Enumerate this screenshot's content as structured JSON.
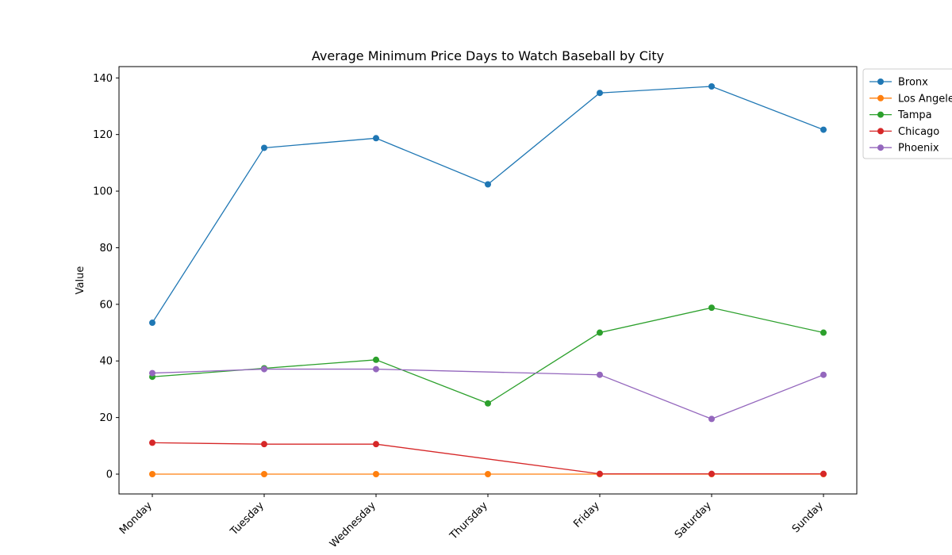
{
  "chart_data": {
    "type": "line",
    "title": "Average Minimum Price Days to Watch Baseball by City",
    "xlabel": "",
    "ylabel": "Value",
    "categories": [
      "Monday",
      "Tuesday",
      "Wednesday",
      "Thursday",
      "Friday",
      "Saturday",
      "Sunday"
    ],
    "ylim": [
      -7,
      144
    ],
    "yticks": [
      0,
      20,
      40,
      60,
      80,
      100,
      120,
      140
    ],
    "grid": false,
    "legend_position": "outside-top-right",
    "series": [
      {
        "name": "Bronx",
        "color": "#1f77b4",
        "values": [
          53.5,
          115.3,
          118.7,
          102.4,
          134.7,
          137.0,
          121.7
        ]
      },
      {
        "name": "Los Angeles",
        "color": "#ff7f0e",
        "values": [
          0,
          0,
          0,
          0,
          0,
          0,
          0
        ]
      },
      {
        "name": "Tampa",
        "color": "#2ca02c",
        "values": [
          34.4,
          37.4,
          40.4,
          25.0,
          50.0,
          58.8,
          50.0
        ]
      },
      {
        "name": "Chicago",
        "color": "#d62728",
        "values": [
          11.1,
          10.6,
          10.6,
          null,
          0.1,
          0.1,
          0.1
        ]
      },
      {
        "name": "Phoenix",
        "color": "#9467bd",
        "values": [
          35.7,
          37.1,
          37.1,
          null,
          35.1,
          19.5,
          35.1
        ]
      }
    ]
  }
}
